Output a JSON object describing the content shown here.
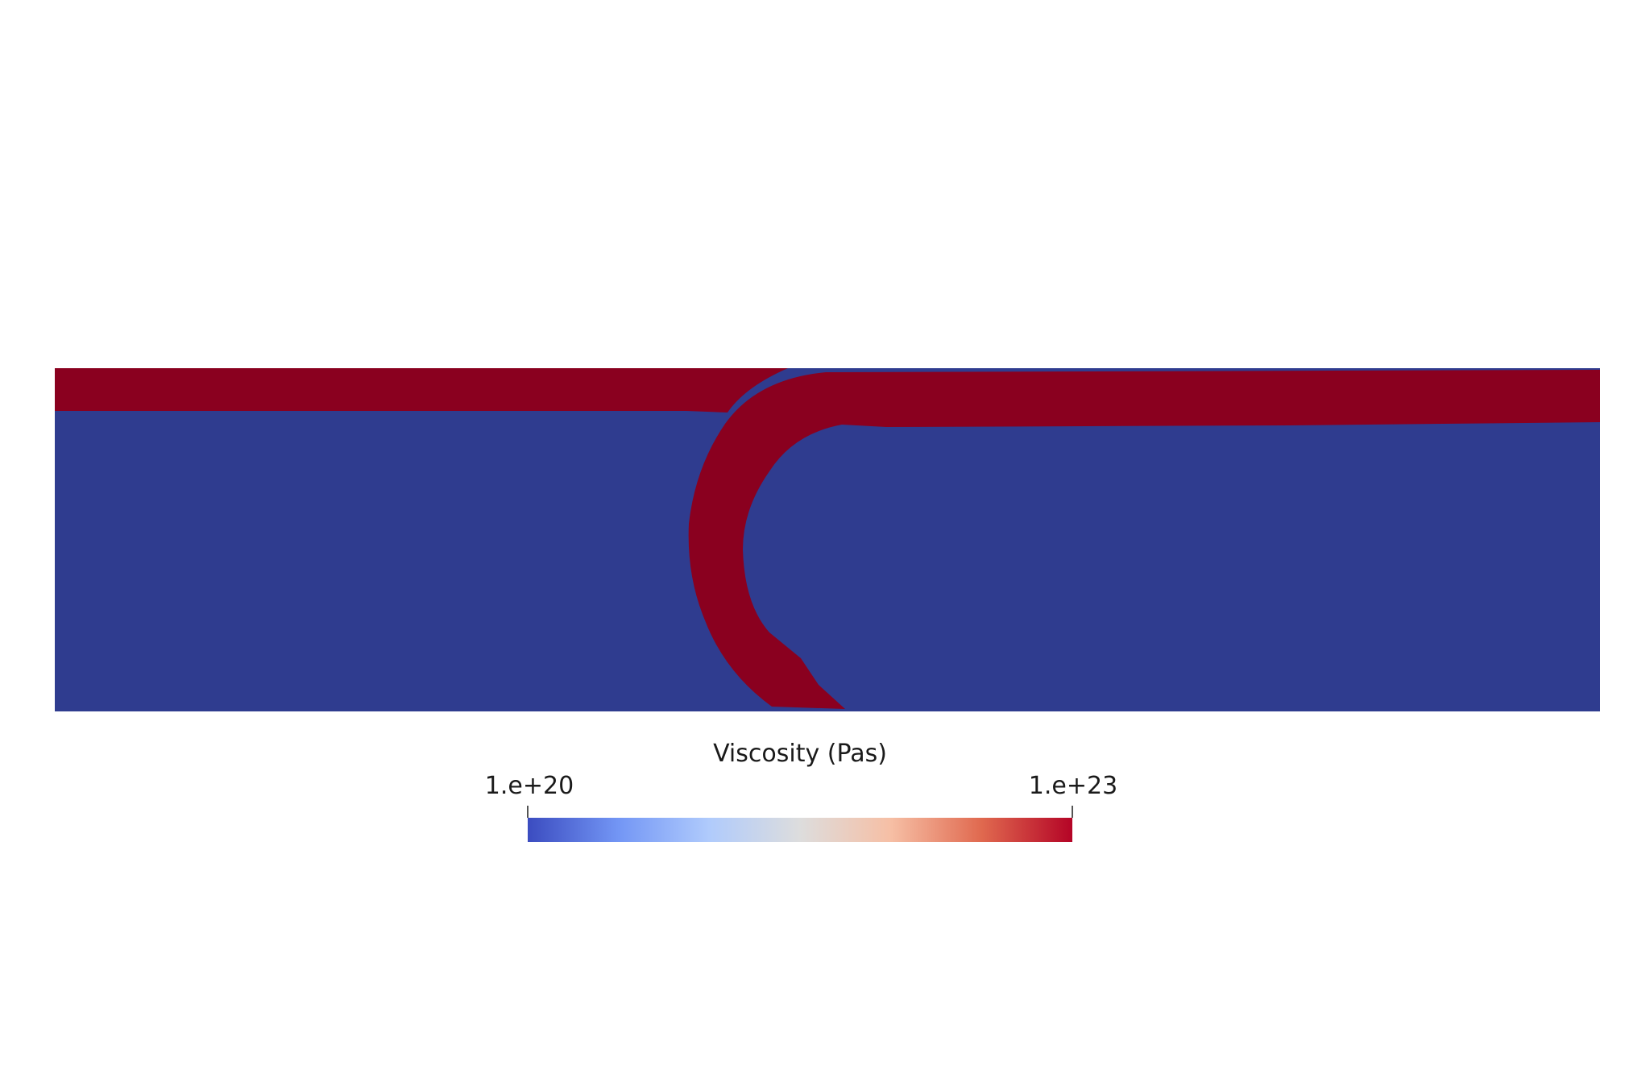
{
  "colors": {
    "background": "#ffffff",
    "low_viscosity": "#2f3c8f",
    "high_viscosity": "#8a001f"
  },
  "legend": {
    "title": "Viscosity (Pas)",
    "min_label": "1.e+20",
    "max_label": "1.e+23",
    "colormap": "cool-to-warm",
    "stops": [
      "#3b4cc0",
      "#7396f5",
      "#b0cbfc",
      "#dddddd",
      "#f6bfa5",
      "#e0694f",
      "#b40426"
    ]
  }
}
